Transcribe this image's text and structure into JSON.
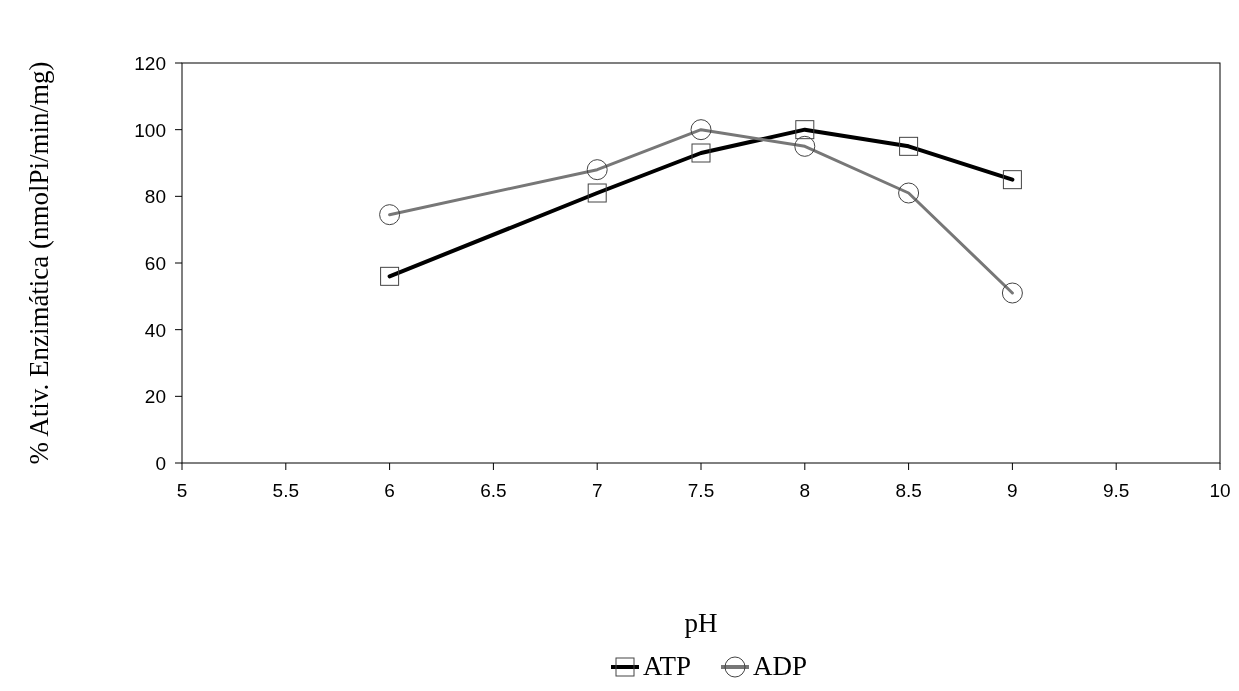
{
  "chart_data": {
    "type": "line",
    "xlabel": "pH",
    "ylabel": "% Ativ. Enzimática (nmolPi/min/mg)",
    "xlim": [
      5,
      10
    ],
    "xticks": [
      5,
      5.5,
      6,
      6.5,
      7,
      7.5,
      8,
      8.5,
      9,
      9.5,
      10
    ],
    "ylim": [
      0,
      120
    ],
    "yticks": [
      0,
      20,
      40,
      60,
      80,
      100,
      120
    ],
    "x": [
      6,
      7,
      7.5,
      8,
      8.5,
      9
    ],
    "grid": false,
    "legend": "bottom",
    "series": [
      {
        "name": "ATP",
        "color": "#000000",
        "values": [
          56,
          81,
          93,
          100,
          95,
          85
        ],
        "marker": "square"
      },
      {
        "name": "ADP",
        "color": "#777777",
        "values": [
          74.5,
          88,
          100,
          95,
          81,
          51
        ],
        "marker": "circle"
      }
    ]
  }
}
